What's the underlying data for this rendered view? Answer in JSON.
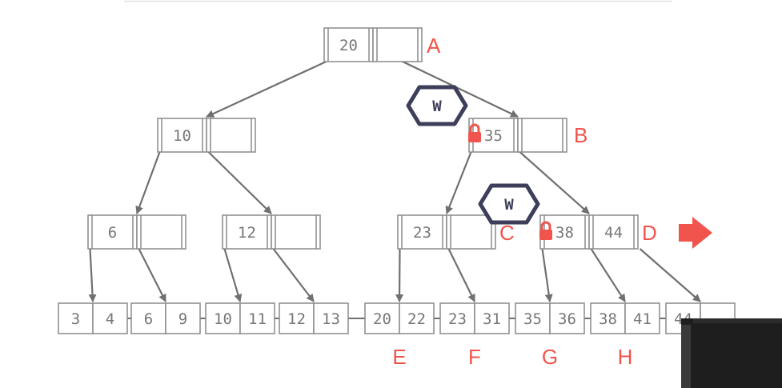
{
  "diagram": {
    "type": "b+tree-latch-crabbing",
    "colors": {
      "border": "#8a8a8a",
      "text": "#777777",
      "edge": "#707070",
      "label": "#f0544c",
      "latch": "#3c3e5a",
      "arrow": "#f0544c",
      "video_overlay": "#1e1e1e"
    },
    "inner_nodes": [
      {
        "id": "A",
        "label": "A",
        "keys": [
          "20",
          ""
        ]
      },
      {
        "id": "B",
        "label": "B",
        "keys": [
          "35",
          ""
        ]
      },
      {
        "id": "n10",
        "label": "",
        "keys": [
          "10",
          ""
        ]
      },
      {
        "id": "n6",
        "label": "",
        "keys": [
          "6",
          ""
        ]
      },
      {
        "id": "n12",
        "label": "",
        "keys": [
          "12",
          ""
        ]
      },
      {
        "id": "C",
        "label": "C",
        "keys": [
          "23",
          ""
        ]
      },
      {
        "id": "D",
        "label": "D",
        "keys": [
          "38",
          "44"
        ]
      }
    ],
    "leaves": [
      {
        "id": "L1",
        "label": "",
        "keys": [
          "3",
          "4"
        ]
      },
      {
        "id": "L2",
        "label": "",
        "keys": [
          "6",
          "9"
        ]
      },
      {
        "id": "L3",
        "label": "",
        "keys": [
          "10",
          "11"
        ]
      },
      {
        "id": "L4",
        "label": "",
        "keys": [
          "12",
          "13"
        ]
      },
      {
        "id": "E",
        "label": "E",
        "keys": [
          "20",
          "22"
        ]
      },
      {
        "id": "F",
        "label": "F",
        "keys": [
          "23",
          "31"
        ]
      },
      {
        "id": "G",
        "label": "G",
        "keys": [
          "35",
          "36"
        ]
      },
      {
        "id": "H",
        "label": "H",
        "keys": [
          "38",
          "41"
        ]
      },
      {
        "id": "I",
        "label": "",
        "keys": [
          "44",
          ""
        ]
      }
    ],
    "latches": [
      {
        "id": "latch-AB",
        "text": "W"
      },
      {
        "id": "latch-BD",
        "text": "W"
      }
    ],
    "current_node_arrow": {
      "target": "D",
      "icon": "right-arrow-icon"
    }
  }
}
